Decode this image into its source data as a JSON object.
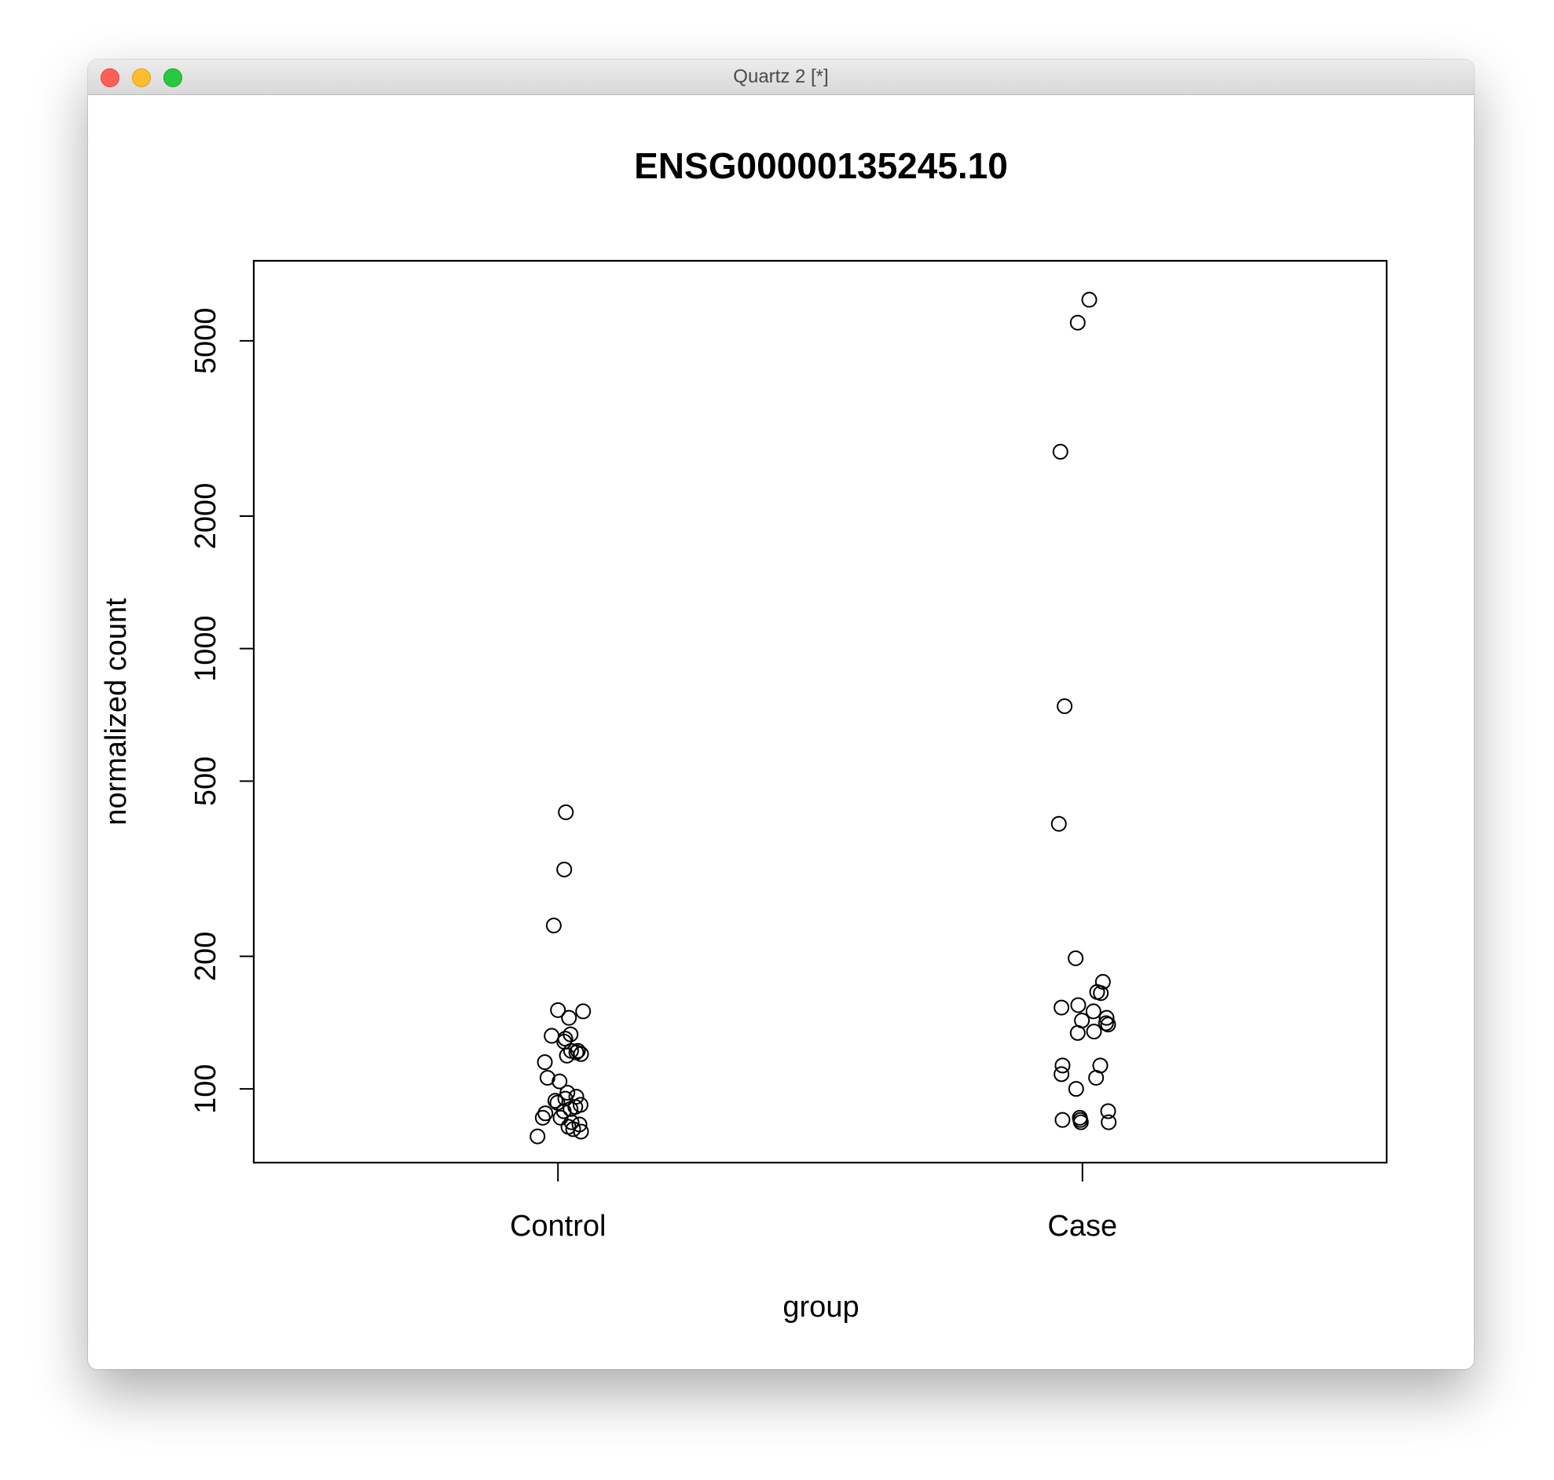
{
  "window": {
    "title": "Quartz 2 [*]"
  },
  "chart_data": {
    "type": "scatter",
    "title": "ENSG00000135245.10",
    "xlabel": "group",
    "ylabel": "normalized count",
    "y_scale": "log",
    "ylim": [
      68,
      7600
    ],
    "yticks": [
      100,
      200,
      500,
      1000,
      2000,
      5000
    ],
    "categories": [
      "Control",
      "Case"
    ],
    "grid": false,
    "legend": "none",
    "series": [
      {
        "category": "Control",
        "jitter": [
          0.015,
          0.012,
          -0.008,
          0.0,
          0.048,
          0.021,
          0.024,
          -0.012,
          0.014,
          0.012,
          0.038,
          0.025,
          0.035,
          0.044,
          0.017,
          -0.025,
          -0.02,
          0.003,
          0.018,
          0.035,
          0.014,
          -0.005,
          -0.001,
          0.043,
          0.033,
          0.024,
          0.011,
          -0.024,
          -0.029,
          0.005,
          0.026,
          0.041,
          0.02,
          0.029,
          0.044,
          -0.039
        ],
        "values": [
          425,
          315,
          235,
          151,
          150,
          145,
          133,
          132,
          130,
          128,
          122,
          122,
          121,
          120,
          119,
          115,
          106,
          104,
          98,
          96,
          95,
          94,
          93,
          92,
          91,
          90,
          89,
          88,
          86,
          86,
          84,
          83,
          82,
          81,
          80,
          78
        ]
      },
      {
        "category": "Case",
        "jitter": [
          0.013,
          -0.009,
          -0.042,
          -0.034,
          -0.045,
          -0.013,
          0.039,
          0.028,
          0.035,
          -0.008,
          -0.04,
          0.021,
          0.046,
          -0.001,
          0.045,
          0.049,
          0.022,
          -0.009,
          0.034,
          -0.038,
          -0.04,
          0.026,
          -0.012,
          0.049,
          -0.005,
          -0.038,
          -0.004,
          -0.003,
          0.05
        ],
        "values": [
          6200,
          5500,
          2800,
          740,
          400,
          198,
          175,
          166,
          165,
          155,
          153,
          150,
          145,
          143,
          141,
          140,
          135,
          134,
          113,
          113,
          108,
          106,
          100,
          89,
          86,
          85,
          85,
          84,
          84
        ]
      }
    ]
  }
}
